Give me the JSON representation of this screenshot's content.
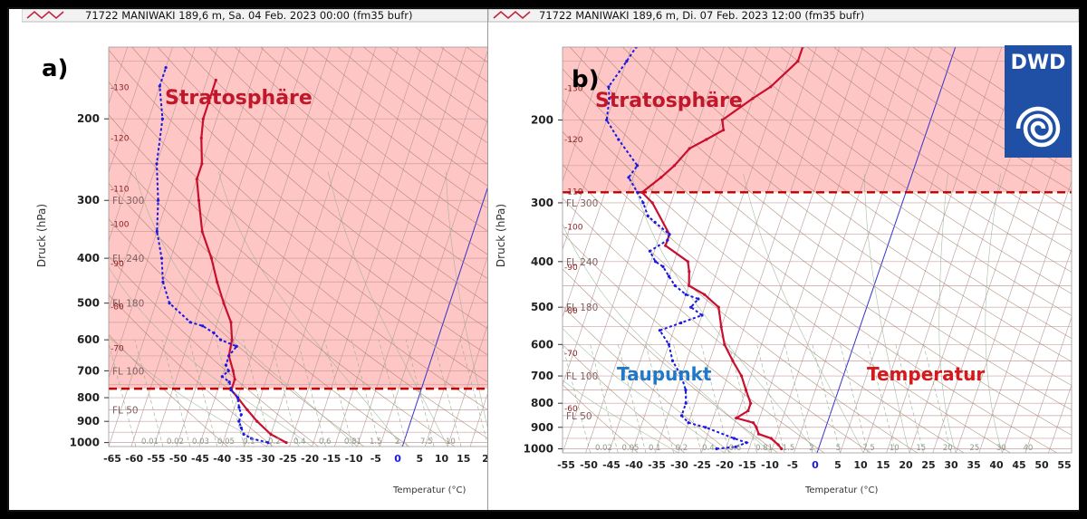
{
  "figure": {
    "dwd_logo_text": "DWD",
    "colors": {
      "stratosphere_fill": "#ffc6c6",
      "tropopause_line": "#c00000",
      "temperature": "#c8102e",
      "dewpoint": "#1a1adf",
      "stratosphere_label": "#c0182a",
      "taupunkt_label": "#1f78c8",
      "temperatur_label": "#d4181c",
      "dwd_blue": "#2050a6"
    }
  },
  "panels": [
    {
      "id": "a",
      "panel_label": "a)",
      "header": "71722 MANIWAKI 189,6 m, Sa. 04 Feb. 2023 00:00 (fm35  bufr)",
      "stratosphere_label": "Stratosphäre",
      "y_label": "Druck (hPa)",
      "x_label": "Temperatur (°C)",
      "pressure_ticks": [
        "200",
        "300",
        "400",
        "500",
        "600",
        "700",
        "800",
        "900",
        "1000"
      ],
      "temp_ticks": [
        "-65",
        "-60",
        "-55",
        "-50",
        "-45",
        "-40",
        "-35",
        "-30",
        "-25",
        "-20",
        "-15",
        "-10",
        "-5",
        "0",
        "5",
        "10",
        "15",
        "2"
      ],
      "flight_levels": [
        "FL 300",
        "FL 240",
        "FL 180",
        "FL 100",
        "FL 50"
      ],
      "theta_labels": [
        "-130",
        "-120",
        "-110",
        "-100",
        "-90",
        "-80",
        "-70"
      ],
      "mixing_ratio_labels": [
        "0.01",
        "0.02",
        "0.03",
        "0.05",
        "0.1",
        "0.2",
        "0.4",
        "0.6",
        "0.81",
        "1.5",
        "2",
        "7.5",
        "10"
      ],
      "tropopause_hpa": 765
    },
    {
      "id": "b",
      "panel_label": "b)",
      "header": "71722 MANIWAKI 189,6 m, Di. 07 Feb. 2023 12:00 (fm35  bufr)",
      "stratosphere_label": "Stratosphäre",
      "dewpoint_label": "Taupunkt",
      "temperature_label": "Temperatur",
      "y_label": "Druck (hPa)",
      "x_label": "Temperatur (°C)",
      "pressure_ticks": [
        "200",
        "300",
        "400",
        "500",
        "600",
        "700",
        "800",
        "900",
        "1000"
      ],
      "temp_ticks": [
        "-55",
        "-50",
        "-45",
        "-40",
        "-35",
        "-30",
        "-25",
        "-20",
        "-15",
        "-10",
        "-5",
        "0",
        "5",
        "10",
        "15",
        "20",
        "25",
        "30",
        "35",
        "40",
        "45",
        "50",
        "55"
      ],
      "flight_levels": [
        "FL 300",
        "FL 240",
        "FL 180",
        "FL 100",
        "FL 50"
      ],
      "theta_labels": [
        "-130",
        "-120",
        "-110",
        "-100",
        "-90",
        "-80",
        "-70",
        "-60"
      ],
      "mixing_ratio_labels": [
        "0.02",
        "0.05",
        "0.1",
        "0.2",
        "0.4",
        "0.6",
        "0.81",
        "1.5",
        "2",
        "5",
        "7.5",
        "10",
        "15",
        "20",
        "25",
        "30",
        "40"
      ],
      "tropopause_hpa": 285
    }
  ],
  "chart_data": [
    {
      "type": "line",
      "panel": "a",
      "title": "71722 MANIWAKI 189,6 m, Sa. 04 Feb. 2023 00:00 (fm35  bufr)",
      "xlabel": "Temperatur (°C)",
      "ylabel": "Druck (hPa)",
      "xlim": [
        -65,
        20
      ],
      "ylim": [
        1020,
        140
      ],
      "y_scale": "log",
      "x_axis_skew": "skewT",
      "series": [
        {
          "kind": "temperature",
          "points": [
            [
              1000,
              -26
            ],
            [
              960,
              -30
            ],
            [
              900,
              -34
            ],
            [
              850,
              -37
            ],
            [
              800,
              -40
            ],
            [
              770,
              -42
            ],
            [
              730,
              -42
            ],
            [
              700,
              -43
            ],
            [
              650,
              -45
            ],
            [
              600,
              -45.5
            ],
            [
              550,
              -47
            ],
            [
              500,
              -50
            ],
            [
              450,
              -53
            ],
            [
              400,
              -56
            ],
            [
              350,
              -60
            ],
            [
              300,
              -63
            ],
            [
              270,
              -65
            ],
            [
              250,
              -65
            ],
            [
              220,
              -67
            ],
            [
              200,
              -68
            ],
            [
              180,
              -68
            ],
            [
              165,
              -68
            ]
          ]
        },
        {
          "kind": "dewpoint",
          "points": [
            [
              1000,
              -30
            ],
            [
              980,
              -34
            ],
            [
              960,
              -36
            ],
            [
              930,
              -37
            ],
            [
              900,
              -38
            ],
            [
              870,
              -38
            ],
            [
              840,
              -39
            ],
            [
              800,
              -40
            ],
            [
              770,
              -42
            ],
            [
              740,
              -43
            ],
            [
              720,
              -45
            ],
            [
              700,
              -44
            ],
            [
              680,
              -45
            ],
            [
              650,
              -45
            ],
            [
              620,
              -44
            ],
            [
              600,
              -48
            ],
            [
              580,
              -50
            ],
            [
              560,
              -53
            ],
            [
              550,
              -56
            ],
            [
              500,
              -62
            ],
            [
              450,
              -65
            ],
            [
              400,
              -67
            ],
            [
              350,
              -70
            ],
            [
              300,
              -72
            ],
            [
              250,
              -75
            ],
            [
              200,
              -77
            ],
            [
              170,
              -80
            ],
            [
              155,
              -80
            ]
          ]
        }
      ],
      "annotations": [
        "Stratosphäre"
      ]
    },
    {
      "type": "line",
      "panel": "b",
      "title": "71722 MANIWAKI 189,6 m, Di. 07 Feb. 2023 12:00 (fm35  bufr)",
      "xlabel": "Temperatur (°C)",
      "ylabel": "Druck (hPa)",
      "xlim": [
        -55,
        55
      ],
      "ylim": [
        1020,
        140
      ],
      "y_scale": "log",
      "x_axis_skew": "skewT",
      "series": [
        {
          "kind": "temperature",
          "points": [
            [
              1000,
              -8
            ],
            [
              980,
              -9
            ],
            [
              950,
              -11
            ],
            [
              930,
              -14
            ],
            [
              900,
              -15
            ],
            [
              880,
              -16
            ],
            [
              860,
              -20
            ],
            [
              830,
              -18
            ],
            [
              800,
              -18
            ],
            [
              750,
              -20
            ],
            [
              700,
              -22
            ],
            [
              650,
              -25
            ],
            [
              600,
              -28
            ],
            [
              550,
              -30
            ],
            [
              500,
              -32
            ],
            [
              470,
              -36
            ],
            [
              450,
              -40
            ],
            [
              420,
              -41
            ],
            [
              400,
              -42
            ],
            [
              370,
              -48
            ],
            [
              350,
              -48
            ],
            [
              300,
              -54
            ],
            [
              285,
              -57
            ],
            [
              265,
              -54
            ],
            [
              250,
              -52
            ],
            [
              230,
              -50
            ],
            [
              220,
              -47
            ],
            [
              210,
              -44
            ],
            [
              200,
              -45
            ],
            [
              180,
              -40
            ],
            [
              170,
              -37
            ],
            [
              150,
              -33
            ],
            [
              140,
              -33
            ]
          ]
        },
        {
          "kind": "dewpoint",
          "points": [
            [
              1000,
              -22
            ],
            [
              990,
              -18
            ],
            [
              970,
              -16
            ],
            [
              950,
              -19
            ],
            [
              900,
              -26
            ],
            [
              880,
              -30
            ],
            [
              850,
              -32
            ],
            [
              800,
              -32
            ],
            [
              750,
              -33
            ],
            [
              700,
              -35
            ],
            [
              650,
              -38
            ],
            [
              600,
              -40
            ],
            [
              560,
              -43
            ],
            [
              540,
              -39
            ],
            [
              520,
              -35
            ],
            [
              500,
              -38
            ],
            [
              480,
              -37
            ],
            [
              470,
              -40
            ],
            [
              450,
              -43
            ],
            [
              430,
              -45
            ],
            [
              410,
              -47
            ],
            [
              400,
              -49
            ],
            [
              380,
              -51
            ],
            [
              360,
              -48
            ],
            [
              350,
              -48
            ],
            [
              330,
              -52
            ],
            [
              320,
              -54
            ],
            [
              300,
              -56
            ],
            [
              285,
              -58
            ],
            [
              265,
              -61
            ],
            [
              250,
              -60
            ],
            [
              220,
              -66
            ],
            [
              200,
              -70
            ],
            [
              180,
              -71
            ],
            [
              170,
              -72
            ],
            [
              150,
              -70
            ],
            [
              140,
              -69
            ]
          ]
        }
      ],
      "annotations": [
        "Stratosphäre",
        "Taupunkt",
        "Temperatur"
      ]
    }
  ]
}
